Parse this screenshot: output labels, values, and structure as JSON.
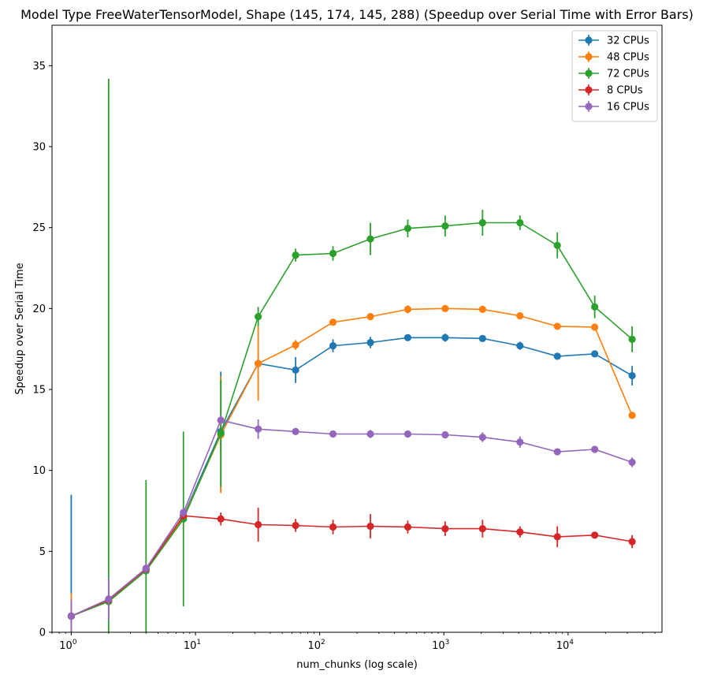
{
  "chart_data": {
    "type": "line",
    "title": "Model Type FreeWaterTensorModel, Shape (145, 174, 145, 288) (Speedup over Serial Time with Error Bars)",
    "xlabel": "num_chunks (log scale)",
    "ylabel": "Speedup over Serial Time",
    "xscale": "log",
    "xlim": [
      0.7,
      57000
    ],
    "ylim": [
      0,
      37.5
    ],
    "yticks": [
      0,
      5,
      10,
      15,
      20,
      25,
      30,
      35
    ],
    "xticks": [
      {
        "value": 1,
        "mantissa": "10",
        "exp": "0"
      },
      {
        "value": 10,
        "mantissa": "10",
        "exp": "1"
      },
      {
        "value": 100,
        "mantissa": "10",
        "exp": "2"
      },
      {
        "value": 1000,
        "mantissa": "10",
        "exp": "3"
      },
      {
        "value": 10000,
        "mantissa": "10",
        "exp": "4"
      }
    ],
    "legend_position": "top-right",
    "grid": false,
    "x": [
      1,
      2,
      4,
      8,
      16,
      32,
      64,
      128,
      256,
      512,
      1024,
      2048,
      4096,
      8192,
      16384,
      32768
    ],
    "series": [
      {
        "name": "32 CPUs",
        "color": "#1f77b4",
        "values": [
          1.0,
          2.0,
          3.85,
          7.2,
          12.4,
          16.6,
          16.2,
          17.7,
          17.9,
          18.2,
          18.2,
          18.15,
          17.7,
          17.05,
          17.2,
          15.85
        ],
        "errors": [
          7.5,
          0.3,
          0.2,
          0.2,
          3.7,
          0.3,
          0.8,
          0.4,
          0.35,
          0.2,
          0.25,
          0.15,
          0.25,
          0.15,
          0.15,
          0.6
        ]
      },
      {
        "name": "48 CPUs",
        "color": "#ff7f0e",
        "values": [
          1.0,
          1.95,
          3.9,
          7.1,
          12.2,
          16.6,
          17.75,
          19.15,
          19.5,
          19.95,
          20.0,
          19.95,
          19.55,
          18.9,
          18.85,
          13.4
        ],
        "errors": [
          1.4,
          0.2,
          0.2,
          0.2,
          3.6,
          2.3,
          0.3,
          0.2,
          0.15,
          0.25,
          0.15,
          0.15,
          0.15,
          0.15,
          0.15,
          0.2
        ]
      },
      {
        "name": "72 CPUs",
        "color": "#2ca02c",
        "values": [
          1.0,
          1.9,
          3.8,
          7.0,
          12.3,
          19.5,
          23.3,
          23.4,
          24.3,
          24.95,
          25.1,
          25.3,
          25.3,
          23.9,
          20.1,
          18.1
        ],
        "errors": [
          0.2,
          32.3,
          5.6,
          5.4,
          3.3,
          0.6,
          0.4,
          0.45,
          1.0,
          0.55,
          0.65,
          0.8,
          0.45,
          0.8,
          0.7,
          0.8
        ]
      },
      {
        "name": "8 CPUs",
        "color": "#d62728",
        "values": [
          1.0,
          2.0,
          3.9,
          7.2,
          7.0,
          6.65,
          6.6,
          6.5,
          6.55,
          6.5,
          6.4,
          6.4,
          6.2,
          5.9,
          6.0,
          5.6
        ],
        "errors": [
          0.2,
          0.2,
          0.2,
          0.2,
          0.4,
          1.05,
          0.4,
          0.45,
          0.75,
          0.4,
          0.45,
          0.55,
          0.35,
          0.65,
          0.2,
          0.4
        ]
      },
      {
        "name": "16 CPUs",
        "color": "#9467bd",
        "values": [
          1.0,
          2.05,
          3.95,
          7.4,
          13.1,
          12.55,
          12.4,
          12.25,
          12.25,
          12.25,
          12.2,
          12.05,
          11.75,
          11.15,
          11.3,
          10.5
        ],
        "errors": [
          1.0,
          1.3,
          0.3,
          0.3,
          0.3,
          0.6,
          0.2,
          0.15,
          0.25,
          0.15,
          0.15,
          0.3,
          0.35,
          0.2,
          0.15,
          0.3
        ]
      }
    ]
  }
}
